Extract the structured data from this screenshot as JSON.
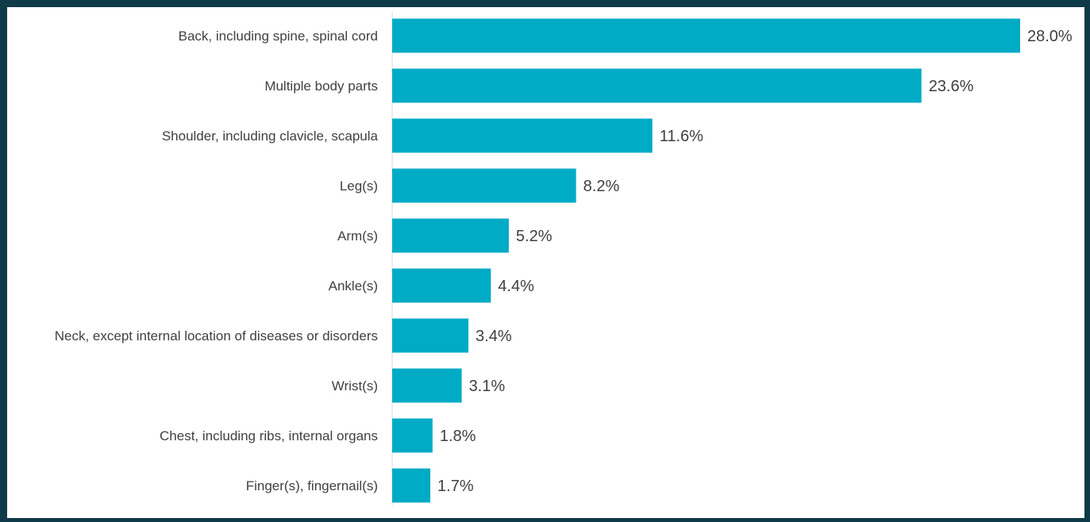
{
  "colors": {
    "bar": "#00abc6",
    "axis": "#d9d9d9",
    "frame": "#0f3a47",
    "text": "#404040"
  },
  "chart_data": {
    "type": "bar",
    "orientation": "horizontal",
    "title": "",
    "xlabel": "",
    "ylabel": "",
    "categories": [
      "Back, including spine, spinal cord",
      "Multiple body parts",
      "Shoulder, including clavicle, scapula",
      "Leg(s)",
      "Arm(s)",
      "Ankle(s)",
      "Neck, except internal location of diseases or disorders",
      "Wrist(s)",
      "Chest, including ribs, internal organs",
      "Finger(s), fingernail(s)"
    ],
    "values": [
      28.0,
      23.6,
      11.6,
      8.2,
      5.2,
      4.4,
      3.4,
      3.1,
      1.8,
      1.7
    ],
    "value_labels": [
      "28.0%",
      "23.6%",
      "11.6%",
      "8.2%",
      "5.2%",
      "4.4%",
      "3.4%",
      "3.1%",
      "1.8%",
      "1.7%"
    ],
    "unit": "%",
    "xlim": [
      0,
      28.0
    ],
    "grid": false,
    "legend": "none"
  }
}
